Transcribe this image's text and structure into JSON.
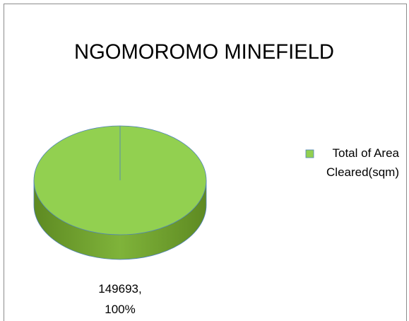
{
  "chart_data": {
    "type": "pie",
    "title": "NGOMOROMO MINEFIELD",
    "categories": [
      "Total of Area Cleared(sqm)"
    ],
    "values": [
      149693
    ],
    "value_labels": [
      "149693, 100%"
    ],
    "colors": [
      "#92d050"
    ],
    "legend": "right"
  }
}
